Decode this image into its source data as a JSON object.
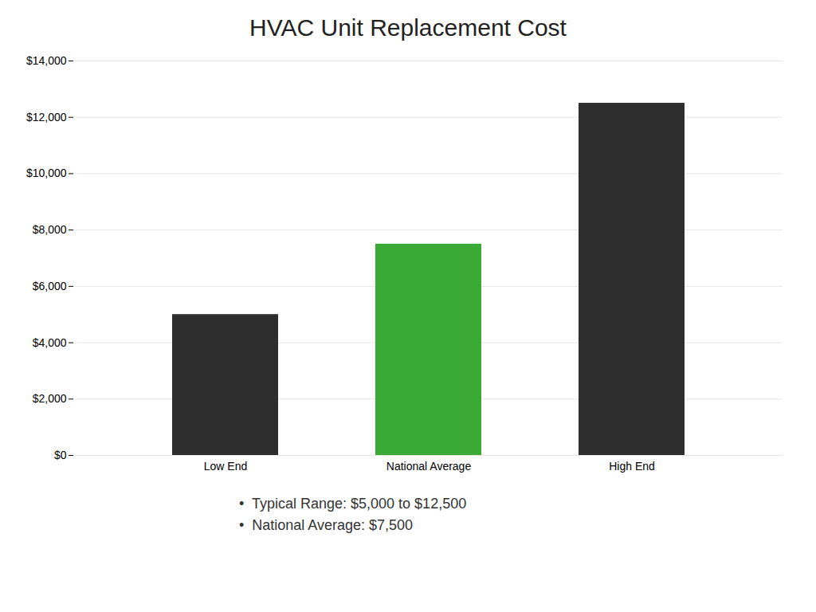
{
  "chart_data": {
    "type": "bar",
    "title": "HVAC Unit Replacement Cost",
    "categories": [
      "Low End",
      "National Average",
      "High End"
    ],
    "values": [
      5000,
      7500,
      12500
    ],
    "colors": [
      "#2e2e2e",
      "#3aaa35",
      "#2e2e2e"
    ],
    "ylim": [
      0,
      14000
    ],
    "yticks": [
      {
        "value": 0,
        "label": "$0"
      },
      {
        "value": 2000,
        "label": "$2,000"
      },
      {
        "value": 4000,
        "label": "$4,000"
      },
      {
        "value": 6000,
        "label": "$6,000"
      },
      {
        "value": 8000,
        "label": "$8,000"
      },
      {
        "value": 10000,
        "label": "$10,000"
      },
      {
        "value": 12000,
        "label": "$12,000"
      },
      {
        "value": 14000,
        "label": "$14,000"
      }
    ],
    "grid": true,
    "annotations": [
      "•  Typical Range: $5,000 to $12,500",
      "•  National Average: $7,500"
    ]
  }
}
